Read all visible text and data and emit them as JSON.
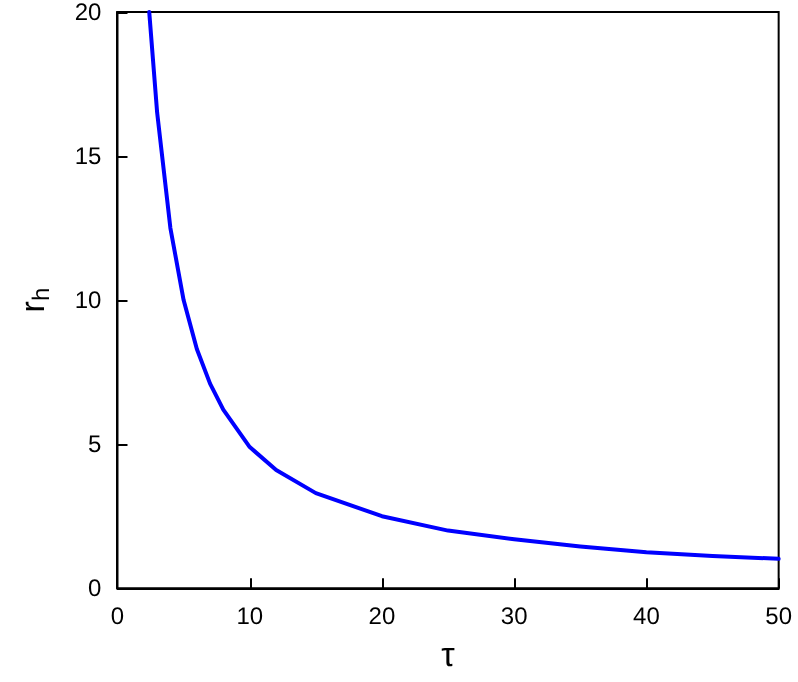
{
  "chart_data": {
    "type": "line",
    "xlabel": "τ",
    "ylabel": "r$_{h}$",
    "x": [
      2.4,
      3,
      4,
      5,
      6,
      7,
      8,
      10,
      12,
      15,
      20,
      25,
      30,
      35,
      40,
      45,
      50
    ],
    "series": [
      {
        "color": "#0000ff",
        "values": [
          20,
          16.5,
          12.5,
          10,
          8.3,
          7.1,
          6.2,
          4.9,
          4.1,
          3.3,
          2.5,
          2.0,
          1.7,
          1.45,
          1.25,
          1.12,
          1.02
        ]
      }
    ],
    "xlim": [
      0,
      50
    ],
    "ylim": [
      0,
      20
    ],
    "xticks": [
      0,
      10,
      20,
      30,
      40,
      50
    ],
    "yticks": [
      0,
      5,
      10,
      15,
      20
    ],
    "grid": false,
    "marker": "none",
    "line_style": "solid"
  }
}
